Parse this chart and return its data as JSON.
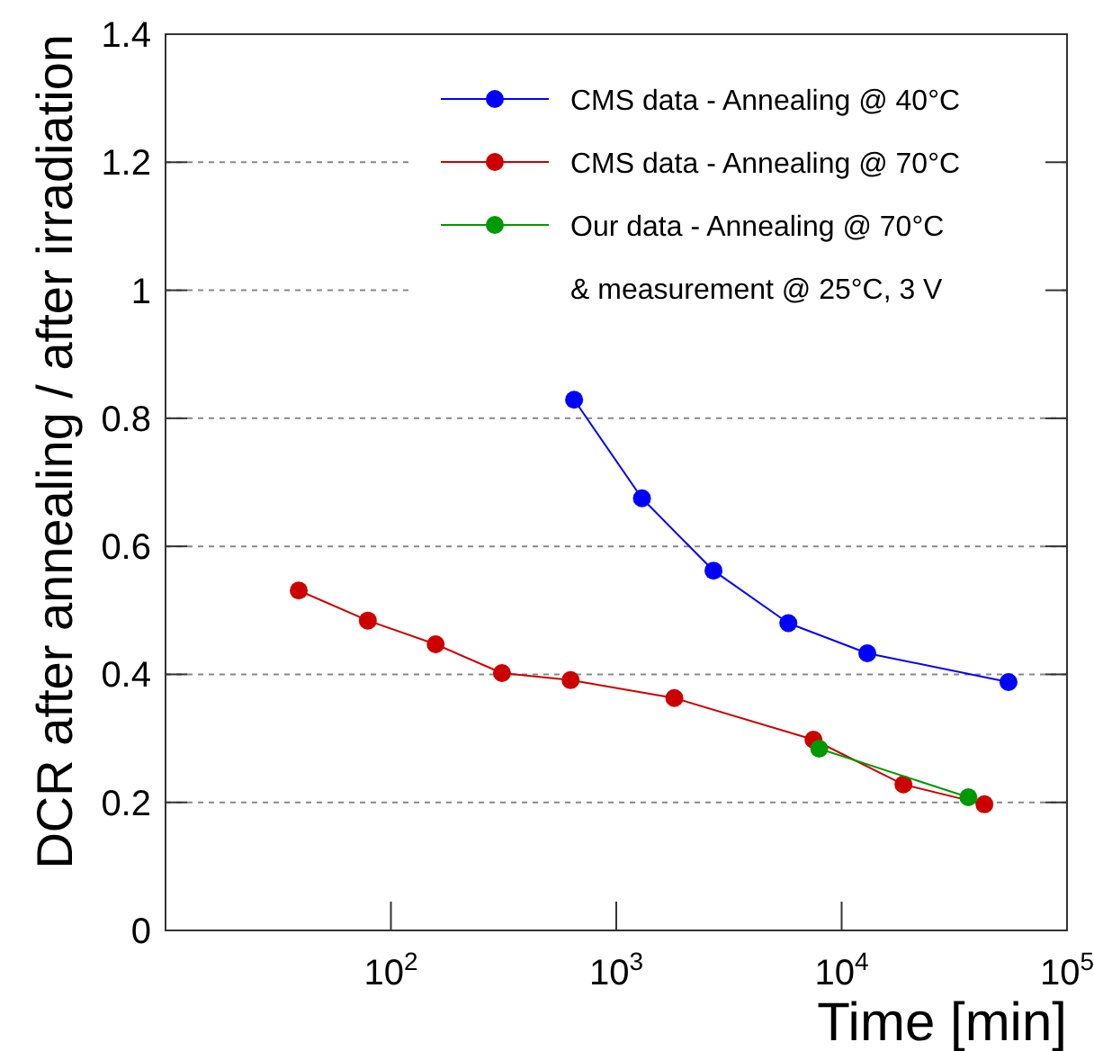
{
  "chart_data": {
    "type": "line",
    "xlabel": "Time [min]",
    "ylabel": "DCR after annealing / after irradiation",
    "log": "x",
    "xlim": [
      10,
      100000
    ],
    "xticks": [
      {
        "value": 100,
        "label": "10$^{2}$"
      },
      {
        "value": 1000,
        "label": "10$^{3}$"
      },
      {
        "value": 10000,
        "label": "10$^{4}$"
      },
      {
        "value": 100000,
        "label": "10$^{5}$"
      }
    ],
    "ylim": [
      0,
      1.4
    ],
    "yticks": [
      0,
      0.2,
      0.4,
      0.6,
      0.8,
      1,
      1.2,
      1.4
    ],
    "grid": "y",
    "legend": "top right",
    "marker": "circle",
    "line_style": "solid",
    "series": [
      {
        "name": "CMS data - Annealing @ 40°C",
        "color": "#0000ff",
        "x": [
          650,
          1300,
          2700,
          5800,
          13000,
          55000
        ],
        "values": [
          0.829,
          0.675,
          0.562,
          0.48,
          0.433,
          0.388
        ]
      },
      {
        "name": "CMS data - Annealing @ 70°C",
        "color": "#cc0000",
        "x": [
          39,
          79,
          158,
          311,
          627,
          1810,
          7500,
          18800,
          43000
        ],
        "values": [
          0.531,
          0.484,
          0.447,
          0.402,
          0.391,
          0.363,
          0.298,
          0.228,
          0.197
        ]
      },
      {
        "name": "Our data - Annealing @ 70°C\n& measurement @ 25°C, 3 V",
        "color": "#009900",
        "x": [
          7950,
          36500
        ],
        "values": [
          0.284,
          0.208
        ]
      }
    ]
  }
}
